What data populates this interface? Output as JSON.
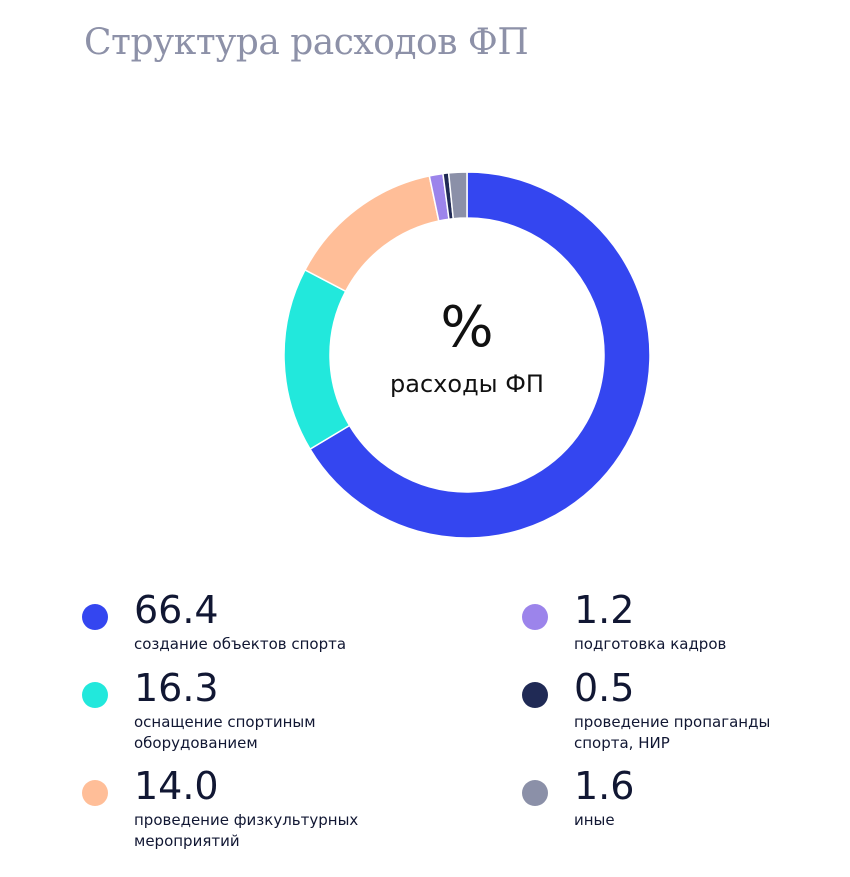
{
  "title": "Структура расходов ФП",
  "chart_data": {
    "type": "pie",
    "donut": true,
    "title": "Структура расходов ФП",
    "center_symbol": "%",
    "center_label": "расходы ФП",
    "unit": "%",
    "slices": [
      {
        "label": "создание объектов спорта",
        "value": 66.4,
        "display": "66.4",
        "color": "#3446f0"
      },
      {
        "label": "оснащение спортиным оборудованием",
        "value": 16.3,
        "display": "16.3",
        "color": "#22e8dc"
      },
      {
        "label": "проведение физкультурных мероприятий",
        "value": 14.0,
        "display": "14.0",
        "color": "#ffbe98"
      },
      {
        "label": "подготовка кадров",
        "value": 1.2,
        "display": "1.2",
        "color": "#9c84eb"
      },
      {
        "label": "проведение пропаганды спорта, НИР",
        "value": 0.5,
        "display": "0.5",
        "color": "#202a55"
      },
      {
        "label": "иные",
        "value": 1.6,
        "display": "1.6",
        "color": "#8b90a8"
      }
    ],
    "legend": "bottom, two columns"
  }
}
